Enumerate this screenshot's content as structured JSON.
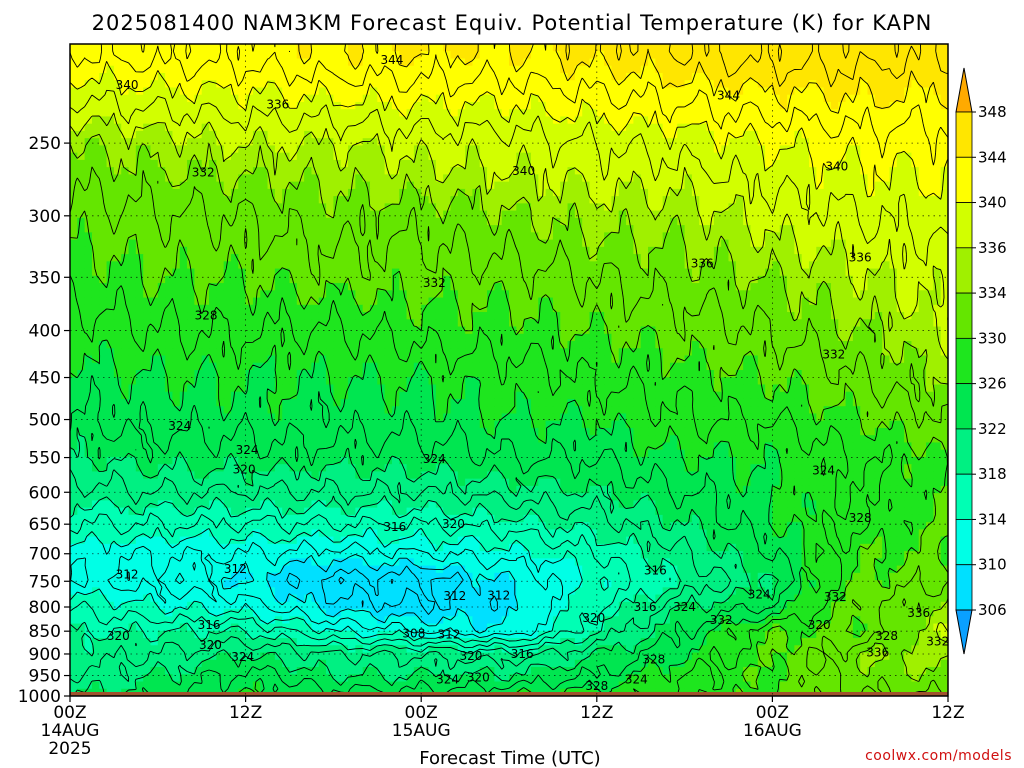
{
  "chart_data": {
    "type": "heatmap",
    "title": "2025081400 NAM3KM Forecast Equiv. Potential Temperature (K) for KAPN",
    "xlabel": "Forecast Time (UTC)",
    "credit": "coolwx.com/models",
    "x_ticks": [
      {
        "hour": 0,
        "label": "00Z",
        "sub1": "14AUG",
        "sub2": "2025"
      },
      {
        "hour": 12,
        "label": "12Z",
        "sub1": "",
        "sub2": ""
      },
      {
        "hour": 24,
        "label": "00Z",
        "sub1": "15AUG",
        "sub2": ""
      },
      {
        "hour": 36,
        "label": "12Z",
        "sub1": "",
        "sub2": ""
      },
      {
        "hour": 48,
        "label": "00Z",
        "sub1": "16AUG",
        "sub2": ""
      },
      {
        "hour": 60,
        "label": "12Z",
        "sub1": "",
        "sub2": ""
      }
    ],
    "xlim": [
      0,
      60
    ],
    "y_scale": "log-pressure",
    "ylim": [
      1000,
      200
    ],
    "y_ticks": [
      250,
      300,
      350,
      400,
      450,
      500,
      550,
      600,
      650,
      700,
      750,
      800,
      850,
      900,
      950,
      1000
    ],
    "ground_pressure": 990,
    "colorbar_levels": [
      306,
      310,
      314,
      318,
      322,
      326,
      330,
      334,
      336,
      340,
      344,
      348
    ],
    "colors": {
      "306": "#00e0ff",
      "310": "#00ffe6",
      "314": "#00ffb4",
      "318": "#00f082",
      "322": "#00e650",
      "326": "#1ee61e",
      "330": "#64e600",
      "334": "#a0f000",
      "336": "#d2ff00",
      "340": "#ffff00",
      "344": "#ffe600",
      "348": "#ffc800",
      "below": "#0aa0ff",
      "above": "#ffaa00",
      "ground": "#a0522d"
    },
    "profiles": [
      {
        "hour": 0,
        "theta_e": {
          "1000": 322,
          "950": 320,
          "900": 319,
          "850": 318,
          "800": 316,
          "750": 312,
          "700": 313,
          "650": 316,
          "600": 319,
          "550": 322,
          "500": 324,
          "450": 325,
          "400": 327,
          "350": 329,
          "300": 331,
          "250": 334,
          "200": 342
        }
      },
      {
        "hour": 6,
        "theta_e": {
          "1000": 323,
          "950": 322,
          "900": 320,
          "850": 318,
          "800": 314,
          "750": 311,
          "700": 312,
          "650": 316,
          "600": 320,
          "550": 323,
          "500": 325,
          "450": 326,
          "400": 328,
          "350": 330,
          "300": 332,
          "250": 335,
          "200": 343
        }
      },
      {
        "hour": 12,
        "theta_e": {
          "1000": 326,
          "950": 325,
          "900": 322,
          "850": 318,
          "800": 313,
          "750": 310,
          "700": 312,
          "650": 316,
          "600": 320,
          "550": 323,
          "500": 325,
          "450": 326,
          "400": 328,
          "350": 330,
          "300": 332,
          "250": 336,
          "200": 343
        }
      },
      {
        "hour": 18,
        "theta_e": {
          "1000": 325,
          "950": 322,
          "900": 320,
          "850": 314,
          "800": 309,
          "750": 307,
          "700": 311,
          "650": 316,
          "600": 320,
          "550": 323,
          "500": 325,
          "450": 326,
          "400": 328,
          "350": 331,
          "300": 333,
          "250": 336,
          "200": 344
        }
      },
      {
        "hour": 24,
        "theta_e": {
          "1000": 325,
          "950": 322,
          "900": 320,
          "850": 312,
          "800": 308,
          "750": 307,
          "700": 312,
          "650": 316,
          "600": 320,
          "550": 323,
          "500": 325,
          "450": 326,
          "400": 329,
          "350": 331,
          "300": 333,
          "250": 337,
          "200": 344
        }
      },
      {
        "hour": 30,
        "theta_e": {
          "1000": 326,
          "950": 322,
          "900": 319,
          "850": 310,
          "800": 309,
          "750": 310,
          "700": 313,
          "650": 317,
          "600": 321,
          "550": 324,
          "500": 326,
          "450": 327,
          "400": 329,
          "350": 331,
          "300": 334,
          "250": 337,
          "200": 344
        }
      },
      {
        "hour": 36,
        "theta_e": {
          "1000": 327,
          "950": 324,
          "900": 322,
          "850": 318,
          "800": 316,
          "750": 314,
          "700": 316,
          "650": 319,
          "600": 322,
          "550": 324,
          "500": 326,
          "450": 328,
          "400": 330,
          "350": 332,
          "300": 335,
          "250": 338,
          "200": 345
        }
      },
      {
        "hour": 42,
        "theta_e": {
          "1000": 328,
          "950": 328,
          "900": 326,
          "850": 324,
          "800": 322,
          "750": 318,
          "700": 320,
          "650": 322,
          "600": 324,
          "550": 326,
          "500": 328,
          "450": 329,
          "400": 331,
          "350": 333,
          "300": 335,
          "250": 339,
          "200": 346
        }
      },
      {
        "hour": 48,
        "theta_e": {
          "1000": 330,
          "950": 330,
          "900": 330,
          "850": 330,
          "800": 324,
          "750": 322,
          "700": 324,
          "650": 326,
          "600": 326,
          "550": 326,
          "500": 328,
          "450": 330,
          "400": 332,
          "350": 334,
          "300": 337,
          "250": 340,
          "200": 347
        }
      },
      {
        "hour": 54,
        "theta_e": {
          "1000": 332,
          "950": 333,
          "900": 334,
          "850": 330,
          "800": 332,
          "750": 330,
          "700": 330,
          "650": 328,
          "600": 328,
          "550": 328,
          "500": 330,
          "450": 332,
          "400": 334,
          "350": 336,
          "300": 338,
          "250": 341,
          "200": 347
        }
      },
      {
        "hour": 60,
        "theta_e": {
          "1000": 332,
          "950": 334,
          "900": 335,
          "850": 336,
          "800": 334,
          "750": 332,
          "700": 330,
          "650": 330,
          "600": 330,
          "550": 330,
          "500": 332,
          "450": 334,
          "400": 336,
          "350": 337,
          "300": 339,
          "250": 341,
          "200": 346
        }
      }
    ],
    "contour_labels": [
      {
        "hour": 22.0,
        "pressure": 203,
        "value": "344"
      },
      {
        "hour": 3.9,
        "pressure": 216,
        "value": "340"
      },
      {
        "hour": 14.2,
        "pressure": 227,
        "value": "336"
      },
      {
        "hour": 45.0,
        "pressure": 222,
        "value": "344"
      },
      {
        "hour": 31.0,
        "pressure": 268,
        "value": "340"
      },
      {
        "hour": 52.4,
        "pressure": 265,
        "value": "340"
      },
      {
        "hour": 9.1,
        "pressure": 269,
        "value": "332"
      },
      {
        "hour": 43.2,
        "pressure": 338,
        "value": "336"
      },
      {
        "hour": 54.0,
        "pressure": 333,
        "value": "336"
      },
      {
        "hour": 24.9,
        "pressure": 355,
        "value": "332"
      },
      {
        "hour": 9.3,
        "pressure": 385,
        "value": "328"
      },
      {
        "hour": 52.2,
        "pressure": 425,
        "value": "332"
      },
      {
        "hour": 7.5,
        "pressure": 508,
        "value": "324"
      },
      {
        "hour": 12.1,
        "pressure": 540,
        "value": "324"
      },
      {
        "hour": 24.9,
        "pressure": 552,
        "value": "324"
      },
      {
        "hour": 11.9,
        "pressure": 567,
        "value": "320"
      },
      {
        "hour": 51.5,
        "pressure": 568,
        "value": "324"
      },
      {
        "hour": 54.0,
        "pressure": 640,
        "value": "328"
      },
      {
        "hour": 22.2,
        "pressure": 655,
        "value": "316"
      },
      {
        "hour": 26.2,
        "pressure": 650,
        "value": "320"
      },
      {
        "hour": 3.9,
        "pressure": 737,
        "value": "312"
      },
      {
        "hour": 11.3,
        "pressure": 727,
        "value": "312"
      },
      {
        "hour": 40.0,
        "pressure": 730,
        "value": "316"
      },
      {
        "hour": 47.1,
        "pressure": 775,
        "value": "324"
      },
      {
        "hour": 52.3,
        "pressure": 780,
        "value": "332"
      },
      {
        "hour": 26.3,
        "pressure": 778,
        "value": "312"
      },
      {
        "hour": 29.3,
        "pressure": 777,
        "value": "312"
      },
      {
        "hour": 39.3,
        "pressure": 800,
        "value": "316"
      },
      {
        "hour": 42.0,
        "pressure": 800,
        "value": "324"
      },
      {
        "hour": 58.0,
        "pressure": 812,
        "value": "336"
      },
      {
        "hour": 35.8,
        "pressure": 822,
        "value": "320"
      },
      {
        "hour": 44.5,
        "pressure": 827,
        "value": "332"
      },
      {
        "hour": 51.2,
        "pressure": 837,
        "value": "320"
      },
      {
        "hour": 9.5,
        "pressure": 837,
        "value": "316"
      },
      {
        "hour": 23.5,
        "pressure": 855,
        "value": "308"
      },
      {
        "hour": 25.9,
        "pressure": 857,
        "value": "312"
      },
      {
        "hour": 55.8,
        "pressure": 860,
        "value": "328"
      },
      {
        "hour": 59.3,
        "pressure": 872,
        "value": "332"
      },
      {
        "hour": 3.3,
        "pressure": 860,
        "value": "320"
      },
      {
        "hour": 9.6,
        "pressure": 880,
        "value": "320"
      },
      {
        "hour": 11.8,
        "pressure": 907,
        "value": "324"
      },
      {
        "hour": 27.4,
        "pressure": 905,
        "value": "320"
      },
      {
        "hour": 30.9,
        "pressure": 900,
        "value": "316"
      },
      {
        "hour": 55.2,
        "pressure": 897,
        "value": "336"
      },
      {
        "hour": 39.9,
        "pressure": 912,
        "value": "328"
      },
      {
        "hour": 27.9,
        "pressure": 955,
        "value": "320"
      },
      {
        "hour": 25.8,
        "pressure": 960,
        "value": "324"
      },
      {
        "hour": 38.7,
        "pressure": 960,
        "value": "324"
      },
      {
        "hour": 36.0,
        "pressure": 975,
        "value": "328"
      }
    ]
  }
}
